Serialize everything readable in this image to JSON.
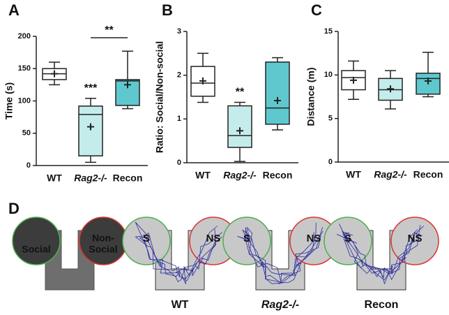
{
  "chart_data": [
    {
      "type": "box",
      "panel": "A",
      "ylabel": "Time (s)",
      "categories": [
        "WT",
        "Rag2-/-",
        "Recon"
      ],
      "boxes": [
        {
          "min": 125,
          "q1": 133,
          "median": 142,
          "q3": 150,
          "max": 160,
          "mean": 142,
          "color": "#ffffff"
        },
        {
          "min": 5,
          "q1": 15,
          "median": 79,
          "q3": 92,
          "max": 104,
          "mean": 60,
          "color": "#c4ecea",
          "label": "***"
        },
        {
          "min": 88,
          "q1": 93,
          "median": 131,
          "q3": 133,
          "max": 177,
          "mean": 125,
          "color": "#5fc8cf"
        }
      ],
      "bracket": "**",
      "ylim": [
        0,
        200
      ],
      "yticks": [
        0,
        50,
        100,
        150,
        200
      ]
    },
    {
      "type": "box",
      "panel": "B",
      "ylabel": "Ratio: Social/Non-social",
      "categories": [
        "WT",
        "Rag2-/-",
        "Recon"
      ],
      "boxes": [
        {
          "min": 1.38,
          "q1": 1.52,
          "median": 1.82,
          "q3": 2.2,
          "max": 2.5,
          "mean": 1.87,
          "color": "#ffffff"
        },
        {
          "min": 0.03,
          "q1": 0.35,
          "median": 0.62,
          "q3": 1.3,
          "max": 1.38,
          "mean": 0.73,
          "color": "#c4ecea",
          "label": "**"
        },
        {
          "min": 0.75,
          "q1": 0.88,
          "median": 1.25,
          "q3": 2.3,
          "max": 2.4,
          "mean": 1.42,
          "color": "#5fc8cf"
        }
      ],
      "ylim": [
        0,
        3
      ],
      "yticks": [
        0,
        1,
        2,
        3
      ]
    },
    {
      "type": "box",
      "panel": "C",
      "ylabel": "Distance (m)",
      "categories": [
        "WT",
        "Rag2-/-",
        "Recon"
      ],
      "boxes": [
        {
          "min": 7.2,
          "q1": 8.3,
          "median": 9.7,
          "q3": 10.5,
          "max": 11.6,
          "mean": 9.4,
          "color": "#ffffff"
        },
        {
          "min": 6.1,
          "q1": 7.1,
          "median": 8.3,
          "q3": 9.6,
          "max": 10.5,
          "mean": 8.4,
          "color": "#c4ecea"
        },
        {
          "min": 7.5,
          "q1": 7.8,
          "median": 9.6,
          "q3": 10.2,
          "max": 12.6,
          "mean": 9.3,
          "color": "#5fc8cf"
        }
      ],
      "ylim": [
        0,
        15
      ],
      "yticks": [
        0,
        5,
        10,
        15
      ]
    }
  ],
  "panel_d": {
    "panel": "D",
    "arenas": [
      {
        "left": "Social",
        "right": [
          "Non-",
          "Social"
        ]
      },
      {
        "left": "S",
        "right": "NS",
        "label": "WT"
      },
      {
        "left": "S",
        "right": "NS",
        "label": "Rag2-/-"
      },
      {
        "left": "S",
        "right": "NS",
        "label": "Recon"
      }
    ]
  }
}
